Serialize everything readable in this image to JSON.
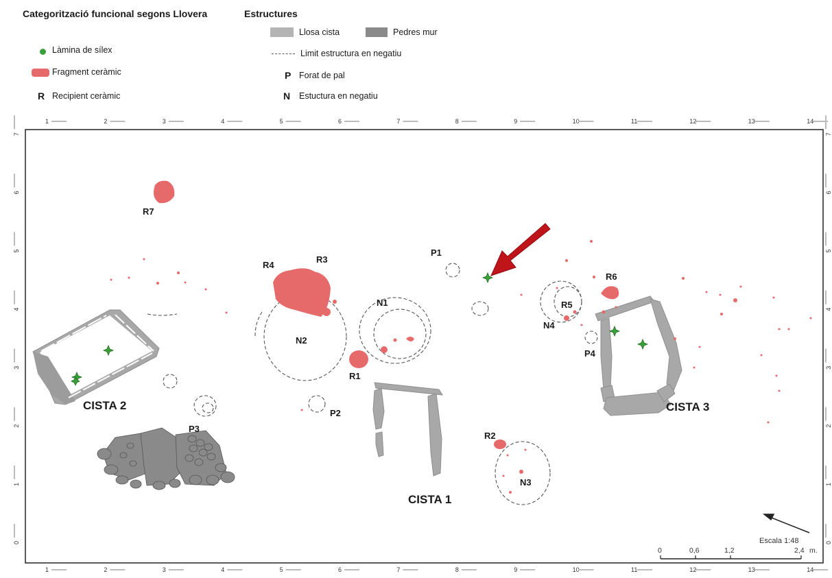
{
  "legend_functional": {
    "title": "Categorització funcional segons Llovera",
    "items": [
      {
        "symbol": "",
        "label": "Làmina de sílex"
      },
      {
        "symbol": "",
        "label": "Fragment ceràmic"
      },
      {
        "symbol": "R",
        "label": "Recipient ceràmic"
      }
    ]
  },
  "legend_structures": {
    "title": "Estructures",
    "items": [
      {
        "symbol": "",
        "label": "Llosa cista"
      },
      {
        "symbol": "",
        "label": "Pedres mur"
      },
      {
        "symbol": "",
        "label": "Limit estructura en negatiu"
      },
      {
        "symbol": "P",
        "label": "Forat de pal"
      },
      {
        "symbol": "N",
        "label": "Estuctura en negatiu"
      }
    ]
  },
  "colors": {
    "flint": "#3aa03a",
    "ceramic": "#e66a6a",
    "slab": "#a8a8a8",
    "wall": "#8a8a8a",
    "arrow": "#c0141b"
  },
  "axes": {
    "x_ticks": [
      "1",
      "2",
      "3",
      "4",
      "5",
      "6",
      "7",
      "8",
      "9",
      "10",
      "11",
      "12",
      "13",
      "14"
    ],
    "y_ticks": [
      "0",
      "1",
      "2",
      "3",
      "4",
      "5",
      "6",
      "7"
    ]
  },
  "labels": {
    "cista1": "CISTA 1",
    "cista2": "CISTA 2",
    "cista3": "CISTA 3",
    "r1": "R1",
    "r2": "R2",
    "r3": "R3",
    "r4": "R4",
    "r5": "R5",
    "r6": "R6",
    "r7": "R7",
    "n1": "N1",
    "n2": "N2",
    "n3": "N3",
    "n4": "N4",
    "p1": "P1",
    "p2": "P2",
    "p3": "P3",
    "p4": "P4"
  },
  "scale": {
    "title": "Escala 1:48",
    "ticks": [
      "0",
      "0,6",
      "1,2",
      "2,4"
    ],
    "unit": "m."
  }
}
